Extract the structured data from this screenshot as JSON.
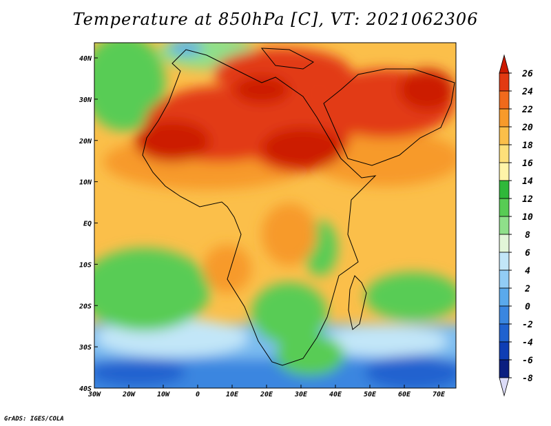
{
  "title": "Temperature at 850hPa [C], VT: 2021062306",
  "credit": "GrADS: IGES/COLA",
  "map": {
    "lat_labels": [
      "40N",
      "30N",
      "20N",
      "10N",
      "EQ",
      "10S",
      "20S",
      "30S",
      "40S"
    ],
    "lon_labels": [
      "30W",
      "20W",
      "10W",
      "0",
      "10E",
      "20E",
      "30E",
      "40E",
      "50E",
      "60E",
      "70E"
    ]
  },
  "colorbar": {
    "levels": [
      "26",
      "24",
      "22",
      "20",
      "18",
      "16",
      "14",
      "12",
      "10",
      "8",
      "6",
      "4",
      "2",
      "0",
      "-2",
      "-4",
      "-6",
      "-8"
    ],
    "colors": [
      "#cc1a00",
      "#e23a12",
      "#f06a1c",
      "#f79a2a",
      "#fbbf4a",
      "#fde07a",
      "#fff4a8",
      "#2fb83a",
      "#58cc54",
      "#8fe08a",
      "#e2f6d8",
      "#c2e6f8",
      "#92ccf5",
      "#5aa9ec",
      "#3a86e0",
      "#2062cf",
      "#0f3eb4",
      "#0a1e80",
      "#dcdcf8"
    ]
  }
}
